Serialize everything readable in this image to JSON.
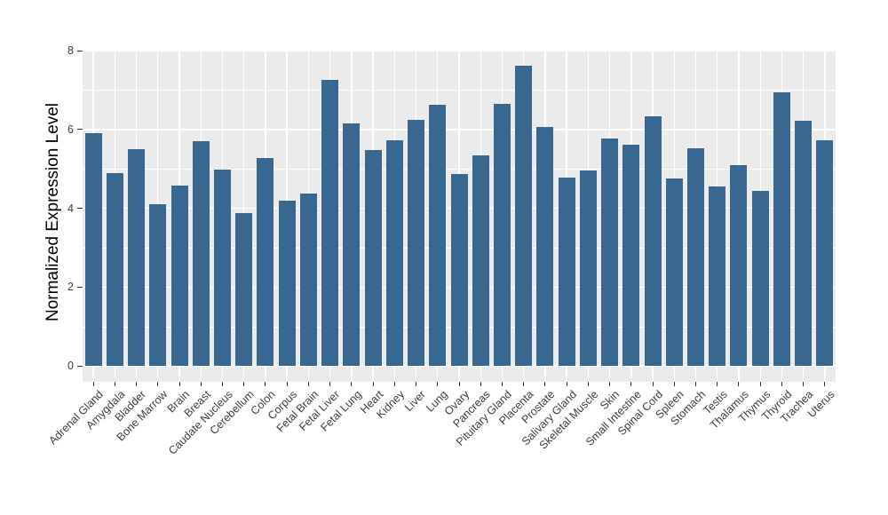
{
  "chart_data": {
    "type": "bar",
    "title": "",
    "xlabel": "",
    "ylabel": "Normalized Expression Level",
    "categories": [
      "Adrenal Gland",
      "Amygdala",
      "Bladder",
      "Bone Marrow",
      "Brain",
      "Breast",
      "Caudate Nucleus",
      "Cerebellum",
      "Colon",
      "Corpus",
      "Fetal Brain",
      "Fetal Liver",
      "Fetal Lung",
      "Heart",
      "Kidney",
      "Liver",
      "Lung",
      "Ovary",
      "Pancreas",
      "Pituitary Gland",
      "Placenta",
      "Prostate",
      "Salivary Gland",
      "Skeletal Muscle",
      "Skin",
      "Small Intestine",
      "Spinal Cord",
      "Spleen",
      "Stomach",
      "Testis",
      "Thalamus",
      "Thymus",
      "Thyroid",
      "Trachea",
      "Uterus"
    ],
    "values": [
      5.9,
      4.88,
      5.5,
      4.1,
      4.57,
      5.7,
      4.98,
      3.87,
      5.28,
      4.19,
      4.37,
      7.25,
      6.15,
      5.47,
      5.72,
      6.24,
      6.62,
      4.87,
      5.35,
      6.65,
      7.61,
      6.07,
      4.78,
      4.95,
      5.77,
      5.61,
      6.33,
      4.75,
      5.53,
      4.55,
      5.1,
      4.44,
      6.94,
      6.21,
      5.73
    ],
    "ylim": [
      -0.4,
      8
    ],
    "yticks": [
      0,
      2,
      4,
      6,
      8
    ],
    "yminor": [
      1,
      3,
      5,
      7
    ],
    "grid": "on",
    "legend": "none",
    "bar_color": "#38678F",
    "panel_bg": "#EBEBEB",
    "grid_color": "#FFFFFF",
    "tick_color": "#333333"
  }
}
